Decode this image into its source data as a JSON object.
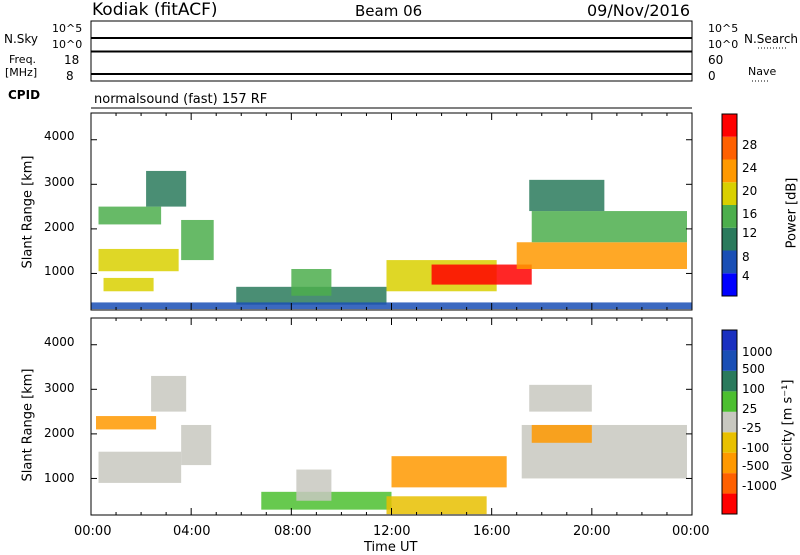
{
  "header": {
    "station": "Kodiak (fitACF)",
    "beam": "Beam 06",
    "date": "09/Nov/2016"
  },
  "strips": {
    "nsky_label": "N.Sky",
    "nsky_ticks": [
      "10^5",
      "10^0"
    ],
    "nsearch_label": "N.Search",
    "nsearch_ticks": [
      "10^5",
      "10^0"
    ],
    "freq_label_1": "Freq.",
    "freq_label_2": "[MHz]",
    "freq_ticks": [
      "18",
      "8"
    ],
    "nave_label": "Nave",
    "nave_ticks": [
      "60",
      "0"
    ],
    "cpid_label": "CPID",
    "cpid_text": "normalsound (fast) 157 RF"
  },
  "chart_data": [
    {
      "type": "heatmap",
      "title": "",
      "ylabel": "Slant Range [km]",
      "yticks": [
        "4000",
        "3000",
        "2000",
        "1000"
      ],
      "ylim": [
        180,
        4600
      ],
      "colorbar_label": "Power [dB]",
      "colorbar_ticks": [
        "28",
        "24",
        "20",
        "16",
        "12",
        "8",
        "4"
      ],
      "colorbar_colors": [
        "#0000ff",
        "#1a4fb5",
        "#2a7a5c",
        "#4cae4c",
        "#d9d000",
        "#ff9900",
        "#ff6000",
        "#ff0000"
      ],
      "regions": [
        {
          "t": [
            0.3,
            3.5
          ],
          "r": [
            1050,
            1550
          ],
          "value": 18
        },
        {
          "t": [
            3.6,
            4.9
          ],
          "r": [
            1300,
            2200
          ],
          "value": 12
        },
        {
          "t": [
            0.3,
            2.8
          ],
          "r": [
            2100,
            2500
          ],
          "value": 14
        },
        {
          "t": [
            0.5,
            2.5
          ],
          "r": [
            600,
            900
          ],
          "value": 16
        },
        {
          "t": [
            2.2,
            3.8
          ],
          "r": [
            2500,
            3300
          ],
          "value": 10
        },
        {
          "t": [
            5.8,
            11.8
          ],
          "r": [
            300,
            700
          ],
          "value": 10
        },
        {
          "t": [
            8.0,
            9.6
          ],
          "r": [
            500,
            1100
          ],
          "value": 12
        },
        {
          "t": [
            11.8,
            16.2
          ],
          "r": [
            600,
            1300
          ],
          "value": 16
        },
        {
          "t": [
            13.6,
            17.6
          ],
          "r": [
            750,
            1200
          ],
          "value": 28
        },
        {
          "t": [
            17.0,
            23.8
          ],
          "r": [
            1100,
            1700
          ],
          "value": 20
        },
        {
          "t": [
            17.6,
            23.8
          ],
          "r": [
            1700,
            2400
          ],
          "value": 12
        },
        {
          "t": [
            17.5,
            20.5
          ],
          "r": [
            2400,
            3100
          ],
          "value": 10
        },
        {
          "t": [
            0.0,
            24.0
          ],
          "r": [
            200,
            350
          ],
          "value": 6
        }
      ]
    },
    {
      "type": "heatmap",
      "title": "",
      "ylabel": "Slant Range [km]",
      "yticks": [
        "4000",
        "3000",
        "2000",
        "1000"
      ],
      "ylim": [
        180,
        4600
      ],
      "colorbar_label": "Velocity [m s⁻¹]",
      "colorbar_ticks": [
        "1000",
        "500",
        "100",
        "25",
        "-25",
        "-100",
        "-500",
        "-1000"
      ],
      "colorbar_colors": [
        "#ff0000",
        "#ff6000",
        "#ff9900",
        "#e8c000",
        "#c8c8c0",
        "#4cbf30",
        "#2a7a5c",
        "#1a4fb5",
        "#1a30c0"
      ],
      "regions": [
        {
          "t": [
            0.3,
            3.6
          ],
          "r": [
            900,
            1600
          ],
          "value": 0
        },
        {
          "t": [
            3.6,
            4.8
          ],
          "r": [
            1300,
            2200
          ],
          "value": 0
        },
        {
          "t": [
            0.2,
            2.6
          ],
          "r": [
            2100,
            2400
          ],
          "value": -150
        },
        {
          "t": [
            2.4,
            3.8
          ],
          "r": [
            2500,
            3300
          ],
          "value": 0
        },
        {
          "t": [
            6.8,
            12.0
          ],
          "r": [
            300,
            700
          ],
          "value": 60
        },
        {
          "t": [
            8.2,
            9.6
          ],
          "r": [
            500,
            1200
          ],
          "value": 0
        },
        {
          "t": [
            11.8,
            15.8
          ],
          "r": [
            200,
            600
          ],
          "value": -60
        },
        {
          "t": [
            12.0,
            16.6
          ],
          "r": [
            800,
            1500
          ],
          "value": -300
        },
        {
          "t": [
            17.2,
            23.8
          ],
          "r": [
            1000,
            2200
          ],
          "value": 0
        },
        {
          "t": [
            17.6,
            20.0
          ],
          "r": [
            1800,
            2200
          ],
          "value": -300
        },
        {
          "t": [
            17.5,
            20.0
          ],
          "r": [
            2500,
            3100
          ],
          "value": 0
        }
      ]
    }
  ],
  "xaxis": {
    "ticks": [
      "00:00",
      "04:00",
      "08:00",
      "12:00",
      "16:00",
      "20:00",
      "00:00"
    ],
    "label": "Time UT",
    "range": [
      0,
      24
    ]
  }
}
